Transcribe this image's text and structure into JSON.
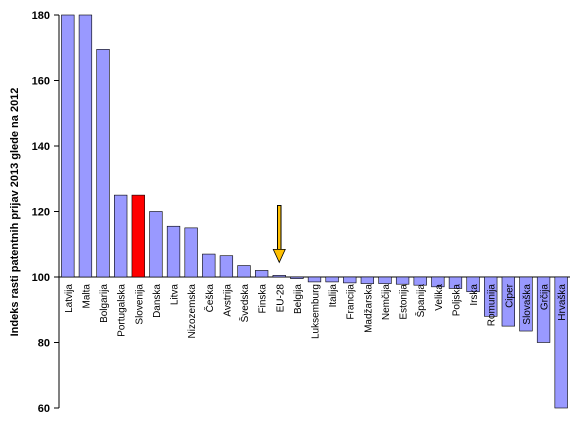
{
  "chart_data": {
    "type": "bar",
    "title": "",
    "xlabel": "",
    "ylabel": "Indeks rasti patentnih prijav 2013 glede na 2012",
    "ylim": [
      60,
      180
    ],
    "yticks": [
      60,
      80,
      100,
      120,
      140,
      160,
      180
    ],
    "baseline": 100,
    "grid": false,
    "categories": [
      "Latvija",
      "Malta",
      "Bolgarija",
      "Portugalska",
      "Slovenija",
      "Danska",
      "Litva",
      "Nizozemska",
      "Češka",
      "Avstrija",
      "Švedska",
      "Finska",
      "EU-28",
      "Belgija",
      "Luksemburg",
      "Italija",
      "Francija",
      "Madžarska",
      "Nemčija",
      "Estonija",
      "Španija",
      "Velika",
      "Poljska",
      "Irska",
      "Romunija",
      "Ciper",
      "Slovaška",
      "Grčija",
      "Hrvaška"
    ],
    "values": [
      182,
      182,
      169.5,
      125,
      125,
      120,
      115.5,
      115,
      107,
      106.5,
      103.5,
      102,
      100.5,
      99.5,
      98.5,
      98.5,
      98.2,
      98,
      98,
      97.8,
      97.5,
      97,
      96.5,
      95.5,
      88,
      85,
      83.5,
      80,
      60
    ],
    "highlight": {
      "index": 4,
      "color": "#ff0000"
    },
    "bar_color": "#9999ff",
    "arrow": {
      "target_index": 12,
      "color": "#ffc000"
    }
  }
}
